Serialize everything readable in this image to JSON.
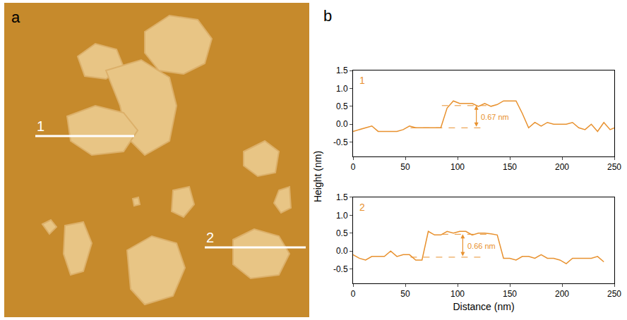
{
  "figure": {
    "panel_labels": [
      "a",
      "b"
    ],
    "image_line_labels": [
      "1",
      "2"
    ],
    "xlabel": "Distance (nm)",
    "ylabel": "Height (nm)"
  },
  "chart_data": [
    {
      "type": "line",
      "label": "1",
      "color": "#e8912e",
      "x": [
        0,
        6,
        12,
        18,
        24,
        30,
        36,
        42,
        48,
        54,
        60,
        66,
        72,
        78,
        84,
        90,
        96,
        102,
        108,
        114,
        120,
        126,
        132,
        138,
        144,
        150,
        156,
        162,
        168,
        174,
        180,
        186,
        192,
        198,
        204,
        210,
        216,
        222,
        228,
        234,
        240,
        246,
        250
      ],
      "values": [
        -0.2,
        -0.15,
        -0.1,
        -0.05,
        -0.2,
        -0.2,
        -0.2,
        -0.2,
        -0.15,
        -0.05,
        -0.1,
        -0.1,
        -0.1,
        -0.1,
        -0.1,
        0.45,
        0.65,
        0.58,
        0.58,
        0.58,
        0.5,
        0.58,
        0.5,
        0.55,
        0.65,
        0.65,
        0.65,
        0.3,
        -0.1,
        0.05,
        -0.05,
        0.05,
        0.0,
        0.0,
        0.0,
        0.05,
        -0.1,
        -0.15,
        0.0,
        -0.2,
        0.05,
        -0.15,
        -0.1
      ],
      "xlim": [
        0,
        250
      ],
      "xticks": [
        0,
        50,
        100,
        150,
        200,
        250
      ],
      "ylim": [
        -0.9,
        1.5
      ],
      "yticks": [
        {
          "value": -0.5,
          "label": "-0.5"
        },
        {
          "value": 0,
          "label": "0.0"
        },
        0.5,
        {
          "value": 1,
          "label": "1.0"
        },
        1.5
      ],
      "measurement": {
        "text": "0.67 nm",
        "x": 118,
        "base_y": -0.1,
        "top_y": 0.52,
        "base_x": [
          55,
          125
        ],
        "top_x": [
          85,
          130
        ]
      }
    },
    {
      "type": "line",
      "label": "2",
      "color": "#e8912e",
      "x": [
        0,
        6,
        12,
        18,
        24,
        30,
        36,
        42,
        48,
        54,
        60,
        66,
        72,
        78,
        84,
        90,
        96,
        102,
        108,
        114,
        120,
        126,
        132,
        138,
        144,
        150,
        156,
        162,
        168,
        174,
        180,
        186,
        192,
        198,
        204,
        210,
        216,
        222,
        228,
        234,
        240
      ],
      "values": [
        -0.1,
        -0.2,
        -0.25,
        -0.15,
        -0.15,
        -0.15,
        0.0,
        -0.15,
        -0.1,
        -0.1,
        -0.25,
        -0.25,
        0.55,
        0.45,
        0.45,
        0.55,
        0.5,
        0.55,
        0.55,
        0.45,
        0.5,
        0.5,
        0.48,
        0.45,
        -0.2,
        -0.2,
        -0.25,
        -0.15,
        -0.15,
        -0.2,
        -0.1,
        -0.2,
        -0.2,
        -0.25,
        -0.35,
        -0.2,
        -0.2,
        -0.2,
        -0.2,
        -0.15,
        -0.3
      ],
      "xlim": [
        0,
        250
      ],
      "xticks": [
        0,
        50,
        100,
        150,
        200,
        250
      ],
      "ylim": [
        -0.9,
        1.5
      ],
      "yticks": [
        {
          "value": -0.5,
          "label": "-0.5"
        },
        {
          "value": 0,
          "label": "0.0"
        },
        0.5,
        {
          "value": 1,
          "label": "1.0"
        },
        1.5
      ],
      "measurement": {
        "text": "0.66 nm",
        "x": 105,
        "base_y": -0.17,
        "top_y": 0.47,
        "base_x": [
          55,
          125
        ],
        "top_x": [
          85,
          130
        ]
      }
    }
  ]
}
